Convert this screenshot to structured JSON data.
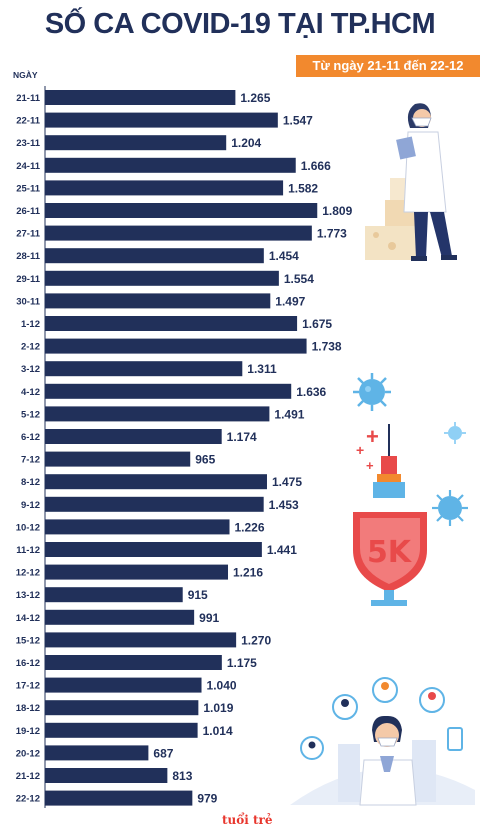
{
  "header": {
    "title": "SỐ CA COVID-19 TẠI TP.HCM",
    "subtitle": "Từ ngày 21-11 đến 22-12"
  },
  "brand": {
    "logo_text": "tuổi trẻ"
  },
  "colors": {
    "bar": "#21305a",
    "accent": "#f2892e",
    "text": "#21305a"
  },
  "chart_data": {
    "type": "bar",
    "orientation": "horizontal",
    "title": "SỐ CA COVID-19 TẠI TP.HCM",
    "subtitle": "Từ ngày 21-11 đến 22-12",
    "ylabel": "NGÀY",
    "categories": [
      "21-11",
      "22-11",
      "23-11",
      "24-11",
      "25-11",
      "26-11",
      "27-11",
      "28-11",
      "29-11",
      "30-11",
      "1-12",
      "2-12",
      "3-12",
      "4-12",
      "5-12",
      "6-12",
      "7-12",
      "8-12",
      "9-12",
      "10-12",
      "11-12",
      "12-12",
      "13-12",
      "14-12",
      "15-12",
      "16-12",
      "17-12",
      "18-12",
      "19-12",
      "20-12",
      "21-12",
      "22-12"
    ],
    "values": [
      1265,
      1547,
      1204,
      1666,
      1582,
      1809,
      1773,
      1454,
      1554,
      1497,
      1675,
      1738,
      1311,
      1636,
      1491,
      1174,
      965,
      1475,
      1453,
      1226,
      1441,
      1216,
      915,
      991,
      1270,
      1175,
      1040,
      1019,
      1014,
      687,
      813,
      979
    ],
    "value_labels": [
      "1.265",
      "1.547",
      "1.204",
      "1.666",
      "1.582",
      "1.809",
      "1.773",
      "1.454",
      "1.554",
      "1.497",
      "1.675",
      "1.738",
      "1.311",
      "1.636",
      "1.491",
      "1.174",
      "965",
      "1.475",
      "1.453",
      "1.226",
      "1.441",
      "1.216",
      "915",
      "991",
      "1.270",
      "1.175",
      "1.040",
      "1.019",
      "1.014",
      "687",
      "813",
      "979"
    ],
    "grid": false,
    "legend": "none"
  },
  "illustrations": {
    "syringe_label": "5K",
    "icons": [
      "doctor-illustration",
      "vaccine-syringe-shield",
      "virus-icon",
      "medical-team-illustration"
    ]
  }
}
